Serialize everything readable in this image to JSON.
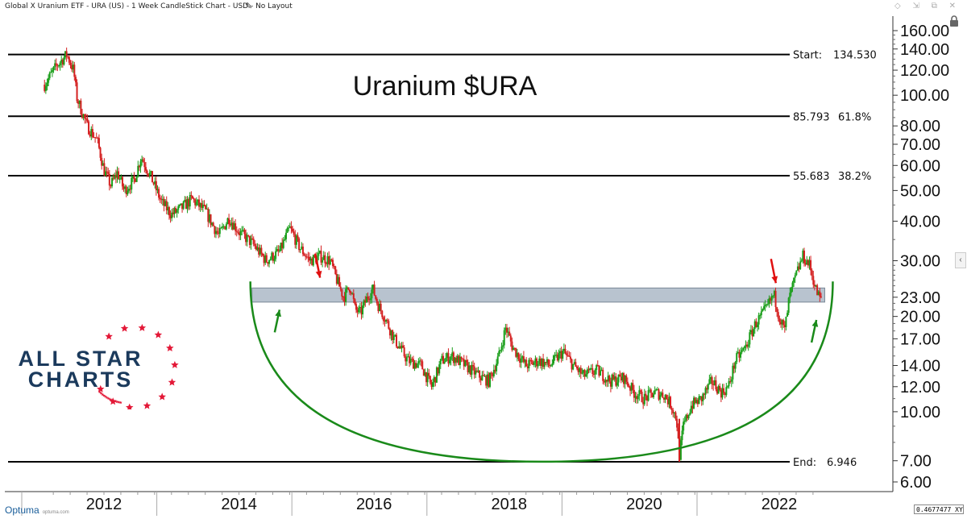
{
  "window": {
    "title": "Global X Uranium ETF - URA (US) - 1 Week CandleStick Chart - USD - No Layout",
    "controls": [
      "◇",
      "⇲",
      "⧉",
      "✕"
    ]
  },
  "footer": {
    "brand": "Optuma",
    "brand_sub": "optuma.com",
    "cursor_value": "0.4677477 XY"
  },
  "watermark": {
    "line1": "ALL STAR",
    "line2": "CHARTS",
    "star_color": "#e31837",
    "text_color": "#1b3a5c"
  },
  "chart_data": {
    "type": "candlestick",
    "title": "Uranium $URA",
    "y_scale": "log",
    "ylim": [
      5.6,
      175
    ],
    "y_ticks": [
      "160.00",
      "140.00",
      "120.00",
      "100.00",
      "80.00",
      "70.00",
      "60.00",
      "50.00",
      "40.00",
      "30.00",
      "23.00",
      "20.00",
      "17.00",
      "14.00",
      "12.00",
      "10.00",
      "7.00",
      "6.00"
    ],
    "y_tick_values": [
      160,
      140,
      120,
      100,
      80,
      70,
      60,
      50,
      40,
      30,
      23,
      20,
      17,
      14,
      12,
      10,
      7,
      6
    ],
    "xlim": [
      2011.1,
      2022.25
    ],
    "x_ticks": [
      "2012",
      "2014",
      "2016",
      "2018",
      "2020",
      "2022"
    ],
    "x_tick_values": [
      2012,
      2014,
      2016,
      2018,
      2020,
      2022
    ],
    "up_color": "#1a9e1a",
    "down_color": "#d42020",
    "price_path": [
      [
        2011.12,
        108
      ],
      [
        2011.3,
        124
      ],
      [
        2011.45,
        134.5
      ],
      [
        2011.55,
        120
      ],
      [
        2011.6,
        98
      ],
      [
        2011.75,
        80
      ],
      [
        2011.9,
        72
      ],
      [
        2012.0,
        58
      ],
      [
        2012.1,
        52
      ],
      [
        2012.2,
        57
      ],
      [
        2012.3,
        50
      ],
      [
        2012.45,
        54
      ],
      [
        2012.55,
        64
      ],
      [
        2012.7,
        55
      ],
      [
        2012.85,
        46
      ],
      [
        2013.0,
        42
      ],
      [
        2013.15,
        44
      ],
      [
        2013.3,
        47
      ],
      [
        2013.5,
        43
      ],
      [
        2013.7,
        36
      ],
      [
        2013.85,
        41
      ],
      [
        2014.0,
        37
      ],
      [
        2014.2,
        34
      ],
      [
        2014.4,
        30
      ],
      [
        2014.6,
        32
      ],
      [
        2014.75,
        38
      ],
      [
        2014.9,
        33
      ],
      [
        2015.05,
        30
      ],
      [
        2015.2,
        31
      ],
      [
        2015.35,
        30
      ],
      [
        2015.45,
        26
      ],
      [
        2015.55,
        23
      ],
      [
        2015.65,
        25
      ],
      [
        2015.72,
        21
      ],
      [
        2015.8,
        20.5
      ],
      [
        2015.9,
        23
      ],
      [
        2015.98,
        24.5
      ],
      [
        2016.05,
        22
      ],
      [
        2016.15,
        20
      ],
      [
        2016.3,
        17
      ],
      [
        2016.5,
        14.5
      ],
      [
        2016.7,
        14
      ],
      [
        2016.85,
        12
      ],
      [
        2017.0,
        14.5
      ],
      [
        2017.15,
        15
      ],
      [
        2017.35,
        14
      ],
      [
        2017.55,
        13
      ],
      [
        2017.7,
        12.5
      ],
      [
        2017.85,
        15
      ],
      [
        2017.95,
        18.5
      ],
      [
        2018.05,
        16
      ],
      [
        2018.25,
        14
      ],
      [
        2018.45,
        14.5
      ],
      [
        2018.6,
        14
      ],
      [
        2018.8,
        15.5
      ],
      [
        2018.95,
        14
      ],
      [
        2019.1,
        13
      ],
      [
        2019.3,
        13.5
      ],
      [
        2019.5,
        12.5
      ],
      [
        2019.7,
        12.8
      ],
      [
        2019.85,
        11.5
      ],
      [
        2020.0,
        11
      ],
      [
        2020.15,
        11.5
      ],
      [
        2020.3,
        11.3
      ],
      [
        2020.4,
        10.5
      ],
      [
        2020.48,
        9.5
      ],
      [
        2020.52,
        7.2
      ],
      [
        2020.58,
        9
      ],
      [
        2020.7,
        10.5
      ],
      [
        2020.85,
        11
      ],
      [
        2021.0,
        12.5
      ],
      [
        2021.15,
        11.5
      ],
      [
        2021.25,
        12
      ],
      [
        2021.35,
        14.5
      ],
      [
        2021.5,
        16
      ],
      [
        2021.65,
        19
      ],
      [
        2021.8,
        21
      ],
      [
        2021.92,
        23.5
      ],
      [
        2022.0,
        20
      ],
      [
        2022.08,
        18
      ],
      [
        2022.15,
        23
      ],
      [
        2022.25,
        27
      ],
      [
        2022.35,
        31
      ],
      [
        2022.45,
        29
      ],
      [
        2022.55,
        24
      ],
      [
        2022.62,
        22.5
      ]
    ],
    "levels": [
      {
        "label": "Start:",
        "value_text": "134.530",
        "pct": "",
        "value": 134.53
      },
      {
        "label": "",
        "value_text": "85.793",
        "pct": "61.8%",
        "value": 85.793
      },
      {
        "label": "",
        "value_text": "55.683",
        "pct": "38.2%",
        "value": 55.683
      },
      {
        "label": "End:",
        "value_text": "6.946",
        "pct": "",
        "value": 6.946
      }
    ],
    "support_zone": {
      "x_start": 2014.55,
      "x_end": 2022.65,
      "y_low": 22.2,
      "y_high": 24.6,
      "color": "#b8c3cf"
    },
    "bowl": {
      "x_start": 2014.55,
      "x_end": 2022.65,
      "top_y": 25.8,
      "bottom_y": 6.95,
      "color": "#1a8a1a"
    },
    "arrows": [
      {
        "color": "red",
        "x": 2015.2,
        "y": 26.5
      },
      {
        "color": "red",
        "x": 2021.95,
        "y": 25.5
      },
      {
        "color": "green",
        "x": 2014.6,
        "y": 21
      },
      {
        "color": "green",
        "x": 2022.55,
        "y": 19.5
      }
    ]
  }
}
